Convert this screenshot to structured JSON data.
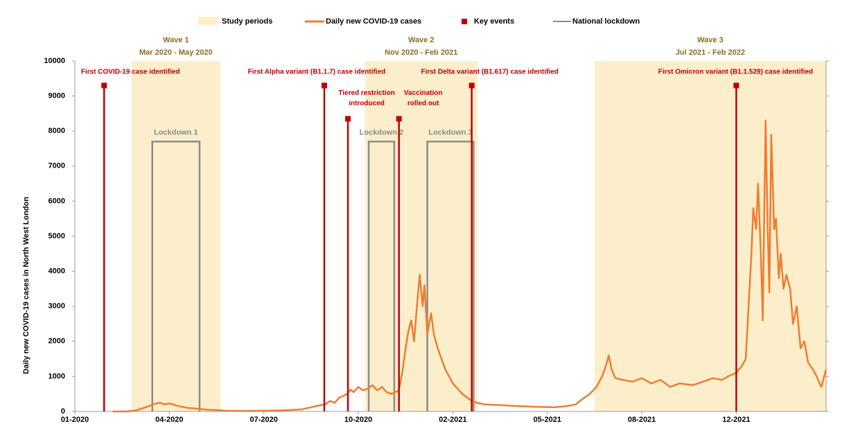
{
  "chart_data": {
    "type": "line",
    "y_label": "Daily new COVID-19 cases in North West London",
    "xlim": [
      0,
      795
    ],
    "ylim": [
      0,
      10000
    ],
    "xticks": [
      {
        "value": 0,
        "label": "01-2020"
      },
      {
        "value": 100,
        "label": "04-2020"
      },
      {
        "value": 200,
        "label": "07-2020"
      },
      {
        "value": 300,
        "label": "10-2020"
      },
      {
        "value": 400,
        "label": "02-2021"
      },
      {
        "value": 500,
        "label": "05-2021"
      },
      {
        "value": 600,
        "label": "08-2021"
      },
      {
        "value": 700,
        "label": "12-2021"
      }
    ],
    "yticks": [
      0,
      1000,
      2000,
      3000,
      4000,
      5000,
      6000,
      7000,
      8000,
      9000,
      10000
    ],
    "series": [
      {
        "name": "Daily new COVID-19 cases",
        "color": "#ed7d31",
        "x": [
          40,
          55,
          65,
          75,
          85,
          90,
          95,
          100,
          110,
          120,
          130,
          140,
          150,
          160,
          180,
          200,
          220,
          240,
          250,
          260,
          265,
          270,
          275,
          280,
          285,
          288,
          292,
          295,
          300,
          305,
          310,
          315,
          320,
          325,
          330,
          335,
          339,
          343,
          347,
          350,
          353,
          356,
          359,
          362,
          365,
          368,
          370,
          373,
          377,
          380,
          384,
          388,
          392,
          396,
          400,
          405,
          410,
          415,
          420,
          425,
          434,
          450,
          470,
          490,
          508,
          520,
          530,
          537,
          545,
          552,
          558,
          562,
          565,
          568,
          572,
          580,
          590,
          600,
          610,
          620,
          630,
          640,
          654,
          665,
          675,
          685,
          691,
          700,
          706,
          710,
          713,
          716,
          718,
          721,
          723,
          726,
          728,
          731,
          733,
          735,
          737,
          740,
          742,
          745,
          747,
          750,
          753,
          757,
          760,
          764,
          768,
          772,
          776,
          781,
          785,
          790,
          795
        ],
        "values": [
          0,
          0,
          30,
          120,
          220,
          250,
          200,
          230,
          150,
          100,
          80,
          50,
          40,
          20,
          15,
          20,
          30,
          60,
          120,
          180,
          200,
          300,
          250,
          400,
          450,
          500,
          620,
          550,
          700,
          600,
          650,
          750,
          600,
          700,
          550,
          500,
          550,
          600,
          1200,
          1800,
          2300,
          2600,
          2000,
          3000,
          3900,
          3000,
          3600,
          2200,
          2800,
          2200,
          1800,
          1500,
          1200,
          1000,
          800,
          650,
          500,
          400,
          300,
          250,
          200,
          180,
          150,
          130,
          120,
          150,
          200,
          350,
          500,
          700,
          1000,
          1300,
          1600,
          1200,
          950,
          900,
          850,
          950,
          800,
          900,
          700,
          800,
          750,
          850,
          950,
          900,
          1000,
          1100,
          1300,
          1500,
          3000,
          4500,
          5800,
          5200,
          6500,
          4500,
          2600,
          8300,
          5500,
          3400,
          7900,
          5200,
          5500,
          3800,
          4500,
          3500,
          3900,
          3500,
          2500,
          3000,
          1800,
          2000,
          1400,
          1200,
          1000,
          700,
          1200
        ]
      }
    ],
    "study_periods": {
      "name": "Study periods",
      "color": "#fdeecb",
      "label_color": "#8c6d1f",
      "periods": [
        {
          "start": 60,
          "end": 154,
          "title": "Wave 1",
          "subtitle": "Mar 2020 - May 2020"
        },
        {
          "start": 307,
          "end": 426,
          "title": "Wave 2",
          "subtitle": "Nov 2020 - Feb 2021"
        },
        {
          "start": 550,
          "end": 795,
          "title": "Wave 3",
          "subtitle": "Jul 2021 - Feb 2022"
        }
      ]
    },
    "key_events": {
      "name": "Key events",
      "color": "#c00000",
      "events": [
        {
          "x": 31,
          "y": 9300,
          "label": [
            "First COVID-19 case identified"
          ]
        },
        {
          "x": 264,
          "y": 9300,
          "label": [
            "First Alpha variant (B1.1.7) case identified"
          ]
        },
        {
          "x": 289,
          "y": 8350,
          "label": [
            "Tiered restriction",
            "introduced"
          ]
        },
        {
          "x": 343,
          "y": 8350,
          "label": [
            "Vaccination",
            "rolled out"
          ]
        },
        {
          "x": 420,
          "y": 9300,
          "label": [
            "First Delta variant (B1.617) case identified"
          ]
        },
        {
          "x": 700,
          "y": 9300,
          "label": [
            "First Omicron variant (B1.1.529) case identified"
          ]
        }
      ]
    },
    "lockdowns": {
      "name": "National lockdown",
      "color": "#8c8c8c",
      "items": [
        {
          "start": 82,
          "end": 132,
          "height": 7700,
          "label": "Lockdown 1"
        },
        {
          "start": 311,
          "end": 338,
          "height": 7700,
          "label": "Lockdown 2"
        },
        {
          "start": 373,
          "end": 422,
          "height": 7700,
          "label": "Lockdown 3"
        }
      ]
    }
  }
}
